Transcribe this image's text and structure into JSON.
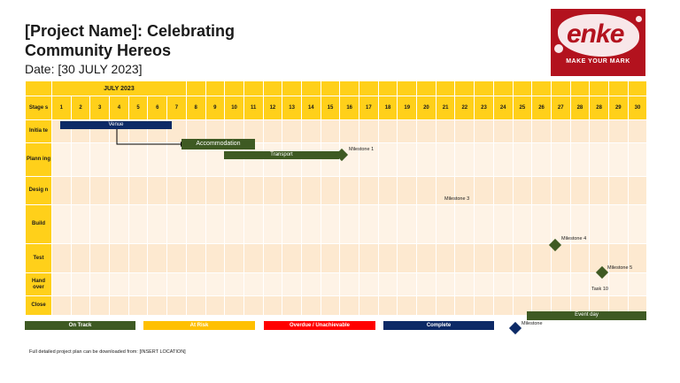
{
  "title": "[Project Name]: Celebrating Community Hereos",
  "date": "Date: [30 JULY 2023]",
  "logo": {
    "word": "enke",
    "tagline": "MAKE YOUR MARK"
  },
  "month": "JULY 2023",
  "stage_header": "Stage s",
  "days": [
    "1",
    "2",
    "3",
    "4",
    "5",
    "6",
    "7",
    "8",
    "9",
    "10",
    "11",
    "12",
    "13",
    "14",
    "15",
    "16",
    "17",
    "18",
    "19",
    "20",
    "21",
    "22",
    "23",
    "24",
    "25",
    "26",
    "27",
    "28",
    "28",
    "29",
    "30"
  ],
  "stages": [
    "Initia te",
    "Plann ing",
    "Desig n",
    "Build",
    "Test",
    "Hand over",
    "Close"
  ],
  "bars": {
    "venue": "Venue",
    "accommodation": "Accommodation",
    "transport": "Transport",
    "event_day": "Event day"
  },
  "milestones": {
    "m1": "Milestone 1",
    "m3": "Milestone 3",
    "m4": "Milestone 4",
    "m5": "Milestone 5",
    "task10": "Task 10"
  },
  "legend": {
    "on_track": "On Track",
    "at_risk": "At Risk",
    "overdue": "Overdue / Unachievable",
    "complete": "Complete",
    "milestone": "Milestone"
  },
  "colors": {
    "on_track": "#3e5a23",
    "at_risk": "#ffc000",
    "overdue": "#ff0000",
    "complete": "#0d2a66",
    "header": "#ffd01a"
  },
  "footnote": "Full detailed project plan can be downloaded from: [INSERT LOCATION]"
}
